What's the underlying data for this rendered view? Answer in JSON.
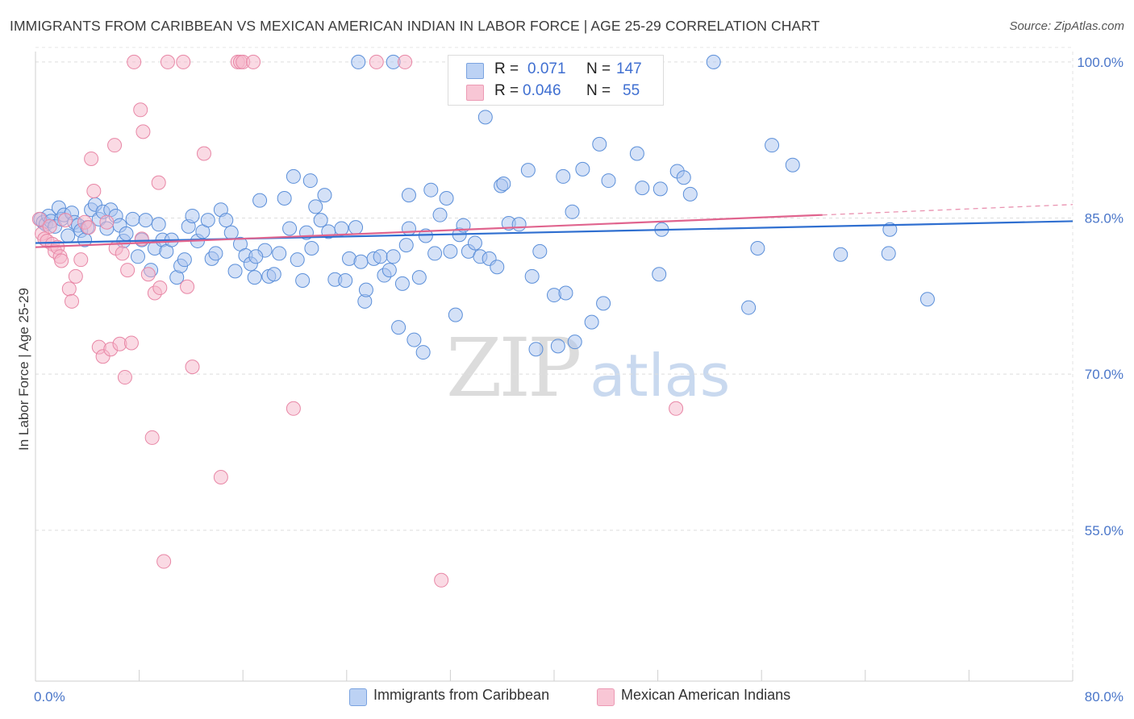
{
  "title": "IMMIGRANTS FROM CARIBBEAN VS MEXICAN AMERICAN INDIAN IN LABOR FORCE | AGE 25-29 CORRELATION CHART",
  "source": "Source: ZipAtlas.com",
  "watermark": {
    "zip": "ZIP",
    "atlas": "atlas"
  },
  "legend_top": {
    "rows": [
      {
        "r_label": "R =",
        "r_value": "0.071",
        "n_label": "N =",
        "n_value": "147"
      },
      {
        "r_label": "R =",
        "r_value": "0.046",
        "n_label": "N =",
        "n_value": "55"
      }
    ]
  },
  "legend_bottom": {
    "items": [
      {
        "label": "Immigrants from Caribbean"
      },
      {
        "label": "Mexican American Indians"
      }
    ]
  },
  "chart_data": {
    "type": "scatter",
    "title": "IMMIGRANTS FROM CARIBBEAN VS MEXICAN AMERICAN INDIAN IN LABOR FORCE | AGE 25-29 CORRELATION CHART",
    "xlabel": "",
    "ylabel": "In Labor Force | Age 25-29",
    "xlim": [
      0,
      80
    ],
    "ylim": [
      40.5,
      101
    ],
    "x_tick_labels": [
      "0.0%",
      "80.0%"
    ],
    "y_ticks": [
      55,
      70,
      85,
      100
    ],
    "y_tick_labels": [
      "55.0%",
      "70.0%",
      "85.0%",
      "100.0%"
    ],
    "grid": true,
    "legend_placement": "top-center",
    "colors": {
      "Immigrants from Caribbean": {
        "fill": "#a9c4ef",
        "stroke": "#5b8fd9",
        "line": "#2f6fd0"
      },
      "Mexican American Indians": {
        "fill": "#f5b6c9",
        "stroke": "#e887a6",
        "line": "#e0648e"
      }
    },
    "series": [
      {
        "name": "Immigrants from Caribbean",
        "r": 0.071,
        "n": 147,
        "trend": {
          "x": [
            0,
            80
          ],
          "y": [
            82.6,
            84.7
          ]
        },
        "points": [
          [
            0.4,
            84.9
          ],
          [
            0.6,
            84.6
          ],
          [
            0.8,
            84.4
          ],
          [
            1.0,
            85.2
          ],
          [
            1.2,
            84.7
          ],
          [
            1.5,
            84.2
          ],
          [
            1.8,
            86.0
          ],
          [
            2.0,
            84.9
          ],
          [
            2.2,
            85.3
          ],
          [
            2.5,
            83.3
          ],
          [
            2.8,
            85.5
          ],
          [
            3.0,
            84.6
          ],
          [
            3.3,
            84.3
          ],
          [
            3.5,
            83.8
          ],
          [
            3.8,
            82.9
          ],
          [
            4.0,
            84.1
          ],
          [
            4.3,
            85.8
          ],
          [
            4.6,
            86.3
          ],
          [
            4.9,
            84.9
          ],
          [
            5.2,
            85.6
          ],
          [
            5.5,
            84.0
          ],
          [
            5.8,
            85.8
          ],
          [
            6.2,
            85.2
          ],
          [
            6.5,
            84.3
          ],
          [
            6.8,
            82.8
          ],
          [
            7.0,
            83.5
          ],
          [
            7.5,
            84.9
          ],
          [
            7.9,
            81.3
          ],
          [
            8.2,
            82.9
          ],
          [
            8.5,
            84.8
          ],
          [
            8.9,
            80.0
          ],
          [
            9.2,
            82.1
          ],
          [
            9.5,
            84.4
          ],
          [
            9.8,
            82.9
          ],
          [
            10.1,
            81.8
          ],
          [
            10.5,
            82.9
          ],
          [
            10.9,
            79.3
          ],
          [
            11.2,
            80.4
          ],
          [
            11.5,
            81.0
          ],
          [
            11.8,
            84.2
          ],
          [
            12.1,
            85.2
          ],
          [
            12.5,
            82.8
          ],
          [
            12.9,
            83.7
          ],
          [
            13.3,
            84.8
          ],
          [
            13.6,
            81.1
          ],
          [
            13.9,
            81.6
          ],
          [
            14.3,
            85.8
          ],
          [
            14.7,
            84.8
          ],
          [
            15.1,
            83.6
          ],
          [
            15.4,
            79.9
          ],
          [
            15.8,
            82.5
          ],
          [
            16.2,
            81.4
          ],
          [
            16.6,
            80.6
          ],
          [
            16.9,
            79.3
          ],
          [
            17.3,
            86.7
          ],
          [
            17.7,
            81.9
          ],
          [
            18.0,
            79.4
          ],
          [
            18.4,
            79.6
          ],
          [
            18.8,
            81.6
          ],
          [
            19.2,
            86.9
          ],
          [
            19.6,
            84.0
          ],
          [
            19.9,
            89.0
          ],
          [
            20.2,
            81.0
          ],
          [
            20.6,
            79.0
          ],
          [
            20.9,
            83.6
          ],
          [
            21.3,
            82.1
          ],
          [
            21.6,
            86.1
          ],
          [
            22.0,
            84.8
          ],
          [
            22.3,
            87.2
          ],
          [
            22.6,
            83.7
          ],
          [
            23.1,
            79.1
          ],
          [
            23.6,
            84.0
          ],
          [
            23.9,
            79.0
          ],
          [
            24.2,
            81.1
          ],
          [
            24.7,
            84.1
          ],
          [
            25.1,
            80.8
          ],
          [
            25.4,
            77.0
          ],
          [
            25.5,
            78.1
          ],
          [
            26.1,
            81.1
          ],
          [
            26.6,
            81.3
          ],
          [
            26.9,
            79.5
          ],
          [
            27.3,
            80.0
          ],
          [
            27.6,
            81.3
          ],
          [
            28.0,
            74.5
          ],
          [
            28.3,
            78.7
          ],
          [
            28.6,
            82.4
          ],
          [
            28.8,
            87.2
          ],
          [
            29.2,
            73.3
          ],
          [
            29.6,
            79.3
          ],
          [
            29.9,
            72.1
          ],
          [
            30.1,
            83.3
          ],
          [
            30.5,
            87.7
          ],
          [
            30.8,
            81.6
          ],
          [
            31.2,
            85.3
          ],
          [
            31.7,
            86.9
          ],
          [
            32.0,
            81.8
          ],
          [
            32.4,
            75.7
          ],
          [
            32.7,
            83.4
          ],
          [
            33.0,
            84.3
          ],
          [
            33.4,
            81.8
          ],
          [
            33.9,
            82.6
          ],
          [
            34.3,
            81.3
          ],
          [
            34.7,
            94.7
          ],
          [
            35.0,
            81.1
          ],
          [
            35.6,
            80.3
          ],
          [
            35.9,
            88.1
          ],
          [
            36.1,
            88.3
          ],
          [
            36.5,
            84.5
          ],
          [
            37.3,
            84.4
          ],
          [
            38.0,
            89.6
          ],
          [
            38.3,
            79.4
          ],
          [
            38.6,
            72.4
          ],
          [
            38.9,
            81.8
          ],
          [
            40.0,
            77.6
          ],
          [
            40.3,
            72.7
          ],
          [
            40.7,
            89.0
          ],
          [
            40.9,
            77.8
          ],
          [
            41.6,
            73.1
          ],
          [
            41.4,
            85.6
          ],
          [
            42.2,
            89.7
          ],
          [
            42.9,
            75.0
          ],
          [
            43.5,
            92.1
          ],
          [
            43.8,
            76.8
          ],
          [
            44.2,
            88.6
          ],
          [
            46.4,
            91.2
          ],
          [
            46.8,
            87.9
          ],
          [
            47.4,
            98.1
          ],
          [
            48.1,
            79.6
          ],
          [
            48.3,
            83.9
          ],
          [
            48.2,
            87.8
          ],
          [
            49.5,
            89.5
          ],
          [
            50.0,
            88.9
          ],
          [
            50.5,
            87.3
          ],
          [
            55.0,
            76.4
          ],
          [
            55.7,
            82.1
          ],
          [
            56.8,
            92.0
          ],
          [
            58.4,
            90.1
          ],
          [
            62.1,
            81.5
          ],
          [
            65.9,
            83.9
          ],
          [
            65.8,
            81.6
          ],
          [
            68.8,
            77.2
          ],
          [
            24.9,
            100.0
          ],
          [
            27.6,
            100.0
          ],
          [
            52.3,
            100.0
          ],
          [
            21.2,
            88.6
          ],
          [
            28.8,
            84.0
          ],
          [
            17.0,
            81.3
          ]
        ]
      },
      {
        "name": "Mexican American Indians",
        "r": 0.046,
        "n": 55,
        "trend": {
          "x": [
            0,
            60.7
          ],
          "y": [
            82.2,
            85.3
          ]
        },
        "trend_dashed": {
          "x": [
            60.7,
            80
          ],
          "y": [
            85.3,
            86.3
          ]
        },
        "points": [
          [
            0.3,
            84.9
          ],
          [
            0.5,
            83.5
          ],
          [
            0.7,
            83.0
          ],
          [
            0.9,
            82.8
          ],
          [
            1.1,
            84.2
          ],
          [
            1.3,
            82.5
          ],
          [
            1.5,
            81.8
          ],
          [
            1.7,
            82.2
          ],
          [
            1.9,
            81.3
          ],
          [
            2.0,
            80.9
          ],
          [
            2.3,
            84.8
          ],
          [
            2.6,
            78.2
          ],
          [
            2.8,
            77.0
          ],
          [
            3.1,
            79.4
          ],
          [
            3.5,
            81.0
          ],
          [
            3.8,
            84.6
          ],
          [
            4.1,
            84.1
          ],
          [
            4.3,
            90.7
          ],
          [
            4.5,
            87.6
          ],
          [
            4.9,
            72.6
          ],
          [
            5.2,
            71.7
          ],
          [
            5.5,
            84.6
          ],
          [
            5.8,
            72.4
          ],
          [
            6.1,
            92.0
          ],
          [
            6.2,
            82.1
          ],
          [
            6.5,
            72.9
          ],
          [
            6.7,
            81.6
          ],
          [
            6.9,
            69.7
          ],
          [
            7.1,
            80.0
          ],
          [
            7.4,
            73.0
          ],
          [
            7.6,
            100.0
          ],
          [
            8.1,
            95.4
          ],
          [
            8.2,
            83.0
          ],
          [
            8.3,
            93.3
          ],
          [
            8.7,
            79.6
          ],
          [
            9.0,
            63.9
          ],
          [
            9.2,
            77.8
          ],
          [
            9.5,
            88.4
          ],
          [
            9.6,
            78.3
          ],
          [
            9.9,
            52.0
          ],
          [
            10.2,
            100.0
          ],
          [
            11.4,
            100.0
          ],
          [
            11.7,
            78.4
          ],
          [
            12.1,
            70.7
          ],
          [
            13.0,
            91.2
          ],
          [
            14.3,
            60.1
          ],
          [
            15.6,
            100.0
          ],
          [
            15.8,
            100.0
          ],
          [
            16.0,
            100.0
          ],
          [
            16.8,
            100.0
          ],
          [
            19.9,
            66.7
          ],
          [
            26.3,
            100.0
          ],
          [
            28.5,
            100.0
          ],
          [
            31.3,
            50.2
          ],
          [
            49.4,
            66.7
          ]
        ]
      }
    ]
  }
}
